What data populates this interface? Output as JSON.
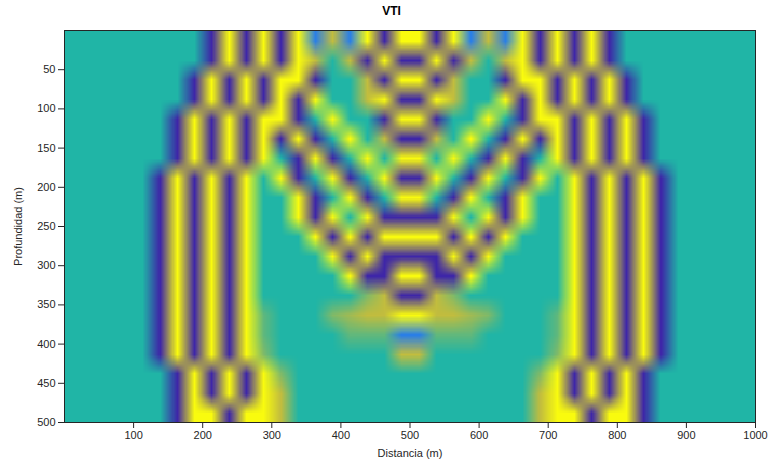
{
  "chart_data": {
    "type": "heatmap",
    "title": "VTI",
    "x_label": "Distancia (m)",
    "y_label": "Profundidad (m)",
    "xlim": [
      0,
      1000
    ],
    "xticks": [
      100,
      200,
      300,
      400,
      500,
      600,
      700,
      800,
      900,
      1000
    ],
    "ylim": [
      0,
      500
    ],
    "yticks": [
      50,
      100,
      150,
      200,
      250,
      300,
      350,
      400,
      450,
      500
    ],
    "clim": [
      -1,
      1
    ],
    "cells": [
      [
        0,
        0,
        0,
        0,
        0,
        0,
        0,
        0,
        -1,
        1,
        -1,
        1,
        -1,
        1,
        -0.5,
        0.5,
        -0.5,
        1,
        -1,
        1,
        1,
        -1,
        1,
        -0.5,
        0.5,
        -0.5,
        1,
        -1,
        1,
        -1,
        1,
        -1,
        0,
        0,
        0,
        0,
        0,
        0,
        0,
        0
      ],
      [
        0,
        0,
        0,
        0,
        0,
        0,
        0,
        0,
        -1,
        1,
        -1,
        1,
        -1,
        1,
        0.5,
        0,
        0.5,
        -1,
        1,
        -1,
        -1,
        1,
        -1,
        0.5,
        0,
        0.5,
        1,
        -1,
        1,
        -1,
        1,
        -1,
        0,
        0,
        0,
        0,
        0,
        0,
        0,
        0
      ],
      [
        0,
        0,
        0,
        0,
        0,
        0,
        0,
        -1,
        1,
        -1,
        1,
        -1,
        1,
        1,
        -1,
        0,
        0,
        0.5,
        -1,
        1,
        1,
        -1,
        0.5,
        0,
        0,
        -1,
        1,
        1,
        -1,
        1,
        -1,
        1,
        -1,
        0,
        0,
        0,
        0,
        0,
        0,
        0
      ],
      [
        0,
        0,
        0,
        0,
        0,
        0,
        0,
        -1,
        1,
        -1,
        1,
        -1,
        1,
        -1,
        1,
        0,
        0,
        0.5,
        1,
        -1,
        -1,
        1,
        0.5,
        0,
        0,
        1,
        -1,
        1,
        -1,
        1,
        -1,
        1,
        -1,
        0,
        0,
        0,
        0,
        0,
        0,
        0
      ],
      [
        0,
        0,
        0,
        0,
        0,
        0,
        -1,
        1,
        -1,
        1,
        -1,
        1,
        1,
        -1,
        0,
        1,
        0,
        0,
        -1,
        1,
        1,
        -1,
        0,
        0,
        1,
        0,
        -1,
        1,
        1,
        -1,
        1,
        -1,
        1,
        -1,
        0,
        0,
        0,
        0,
        0,
        0
      ],
      [
        0,
        0,
        0,
        0,
        0,
        0,
        -1,
        1,
        -1,
        1,
        -1,
        1,
        -1,
        1,
        -1,
        0,
        1,
        0,
        0.5,
        -1,
        -1,
        0.5,
        0,
        1,
        0,
        -1,
        1,
        -1,
        1,
        -1,
        1,
        -1,
        1,
        -1,
        0,
        0,
        0,
        0,
        0,
        0
      ],
      [
        0,
        0,
        0,
        0,
        0,
        0,
        -1,
        1,
        -1,
        1,
        -1,
        1,
        0,
        -1,
        1,
        -1,
        0,
        1,
        0,
        1,
        1,
        0,
        1,
        0,
        -1,
        1,
        -1,
        0,
        1,
        -1,
        1,
        -1,
        1,
        -1,
        0,
        0,
        0,
        0,
        0,
        0
      ],
      [
        0,
        0,
        0,
        0,
        0,
        -1,
        1,
        -1,
        1,
        -1,
        1,
        0,
        1,
        -1,
        0,
        1,
        -1,
        0,
        1,
        -1,
        -1,
        1,
        0,
        -1,
        1,
        0,
        -1,
        1,
        0,
        1,
        -1,
        1,
        -1,
        1,
        -1,
        0,
        0,
        0,
        0,
        0
      ],
      [
        0,
        0,
        0,
        0,
        0,
        -1,
        1,
        -1,
        1,
        -1,
        1,
        0,
        0,
        1,
        -1,
        0,
        1,
        -1,
        0,
        1,
        1,
        0,
        -1,
        1,
        0,
        -1,
        1,
        0,
        0,
        1,
        -1,
        1,
        -1,
        1,
        -1,
        0,
        0,
        0,
        0,
        0
      ],
      [
        0,
        0,
        0,
        0,
        0,
        -1,
        1,
        -1,
        1,
        -1,
        1,
        0,
        0,
        1,
        -1,
        1,
        0,
        1,
        -1,
        -1,
        -1,
        -1,
        1,
        0,
        1,
        -1,
        1,
        0,
        0,
        1,
        -1,
        1,
        -1,
        1,
        -1,
        0,
        0,
        0,
        0,
        0
      ],
      [
        0,
        0,
        0,
        0,
        0,
        -1,
        1,
        -1,
        1,
        -1,
        1,
        0,
        0,
        0,
        1,
        -1,
        1,
        -1,
        1,
        1,
        1,
        1,
        -1,
        1,
        -1,
        1,
        0,
        0,
        0,
        1,
        -1,
        1,
        -1,
        1,
        -1,
        0,
        0,
        0,
        0,
        0
      ],
      [
        0,
        0,
        0,
        0,
        0,
        -1,
        1,
        -1,
        1,
        -1,
        1,
        0,
        0,
        0,
        0,
        1,
        -1,
        1,
        -1,
        -1,
        -1,
        -1,
        1,
        -1,
        1,
        0,
        0,
        0,
        0,
        1,
        -1,
        1,
        -1,
        1,
        -1,
        0,
        0,
        0,
        0,
        0
      ],
      [
        0,
        0,
        0,
        0,
        0,
        -1,
        1,
        -1,
        1,
        -1,
        1,
        0,
        0,
        0,
        0,
        0,
        1,
        -1,
        -1,
        1,
        1,
        -1,
        -1,
        1,
        0,
        0,
        0,
        0,
        0,
        1,
        -1,
        1,
        -1,
        1,
        -1,
        0,
        0,
        0,
        0,
        0
      ],
      [
        0,
        0,
        0,
        0,
        0,
        -1,
        1,
        -1,
        1,
        -1,
        1,
        0,
        0,
        0,
        0,
        0,
        0,
        0.3,
        0.5,
        -1,
        -1,
        0.5,
        0.3,
        0,
        0,
        0,
        0,
        0,
        0,
        1,
        -1,
        1,
        -1,
        1,
        -1,
        0,
        0,
        0,
        0,
        0
      ],
      [
        0,
        0,
        0,
        0,
        0,
        -1,
        1,
        -1,
        1,
        -1,
        1,
        0.2,
        0,
        0,
        0,
        0.3,
        0.4,
        0.5,
        0.5,
        1,
        1,
        0.5,
        0.5,
        0.4,
        0.3,
        0,
        0,
        0,
        0.2,
        1,
        -1,
        1,
        -1,
        1,
        -1,
        0,
        0,
        0,
        0,
        0
      ],
      [
        0,
        0,
        0,
        0,
        0,
        -1,
        1,
        -1,
        1,
        -1,
        1,
        0.2,
        0,
        0,
        0,
        0,
        0.2,
        0.2,
        0.2,
        -0.5,
        -0.5,
        0.2,
        0.2,
        0.2,
        0,
        0,
        0,
        0,
        0.2,
        1,
        -1,
        1,
        -1,
        1,
        -1,
        0,
        0,
        0,
        0,
        0
      ],
      [
        0,
        0,
        0,
        0,
        0,
        -1,
        1,
        -1,
        1,
        -1,
        1,
        0.3,
        0,
        0,
        0,
        0,
        0,
        0,
        0,
        0.5,
        0.5,
        0,
        0,
        0,
        0,
        0,
        0,
        0,
        0.3,
        1,
        -1,
        1,
        -1,
        1,
        -1,
        0,
        0,
        0,
        0,
        0
      ],
      [
        0,
        0,
        0,
        0,
        0,
        0,
        -1,
        1,
        -1,
        1,
        -1,
        1,
        0.3,
        0,
        0,
        0,
        0,
        0,
        0,
        0,
        0,
        0,
        0,
        0,
        0,
        0,
        0,
        0.3,
        1,
        -1,
        1,
        -1,
        1,
        -1,
        0,
        0,
        0,
        0,
        0,
        0
      ],
      [
        0,
        0,
        0,
        0,
        0,
        0,
        -1,
        1,
        -1,
        1,
        -1,
        1,
        0.5,
        0,
        0,
        0,
        0,
        0,
        0,
        0,
        0,
        0,
        0,
        0,
        0,
        0,
        0,
        0.5,
        1,
        -1,
        1,
        -1,
        1,
        -1,
        0,
        0,
        0,
        0,
        0,
        0
      ],
      [
        0,
        0,
        0,
        0,
        0,
        0,
        -1,
        1,
        1,
        -1,
        1,
        1,
        0.5,
        0,
        0,
        0,
        0,
        0,
        0,
        0,
        0,
        0,
        0,
        0,
        0,
        0,
        0,
        0.5,
        1,
        1,
        -1,
        1,
        1,
        -1,
        0,
        0,
        0,
        0,
        0,
        0
      ]
    ]
  }
}
